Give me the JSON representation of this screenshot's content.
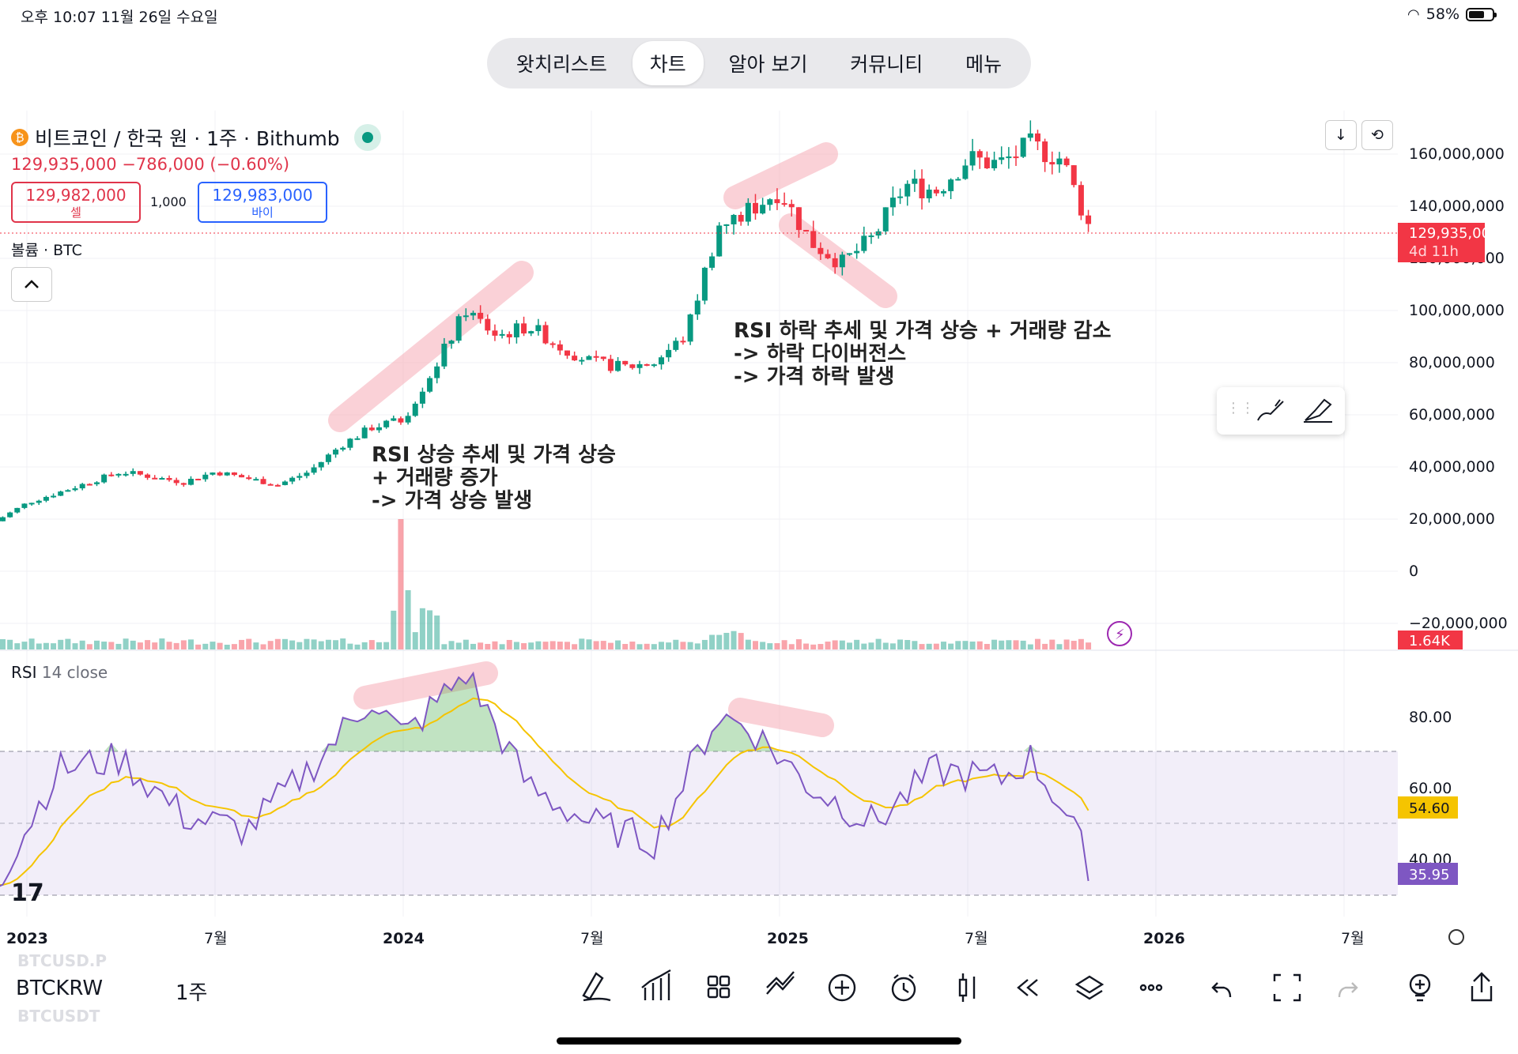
{
  "status_bar": {
    "time": "오후 10:07   11월 26일 수요일",
    "battery": "58%"
  },
  "nav": {
    "tabs": [
      "왓치리스트",
      "차트",
      "알아 보기",
      "커뮤니티",
      "메뉴"
    ],
    "active": "차트"
  },
  "symbol": {
    "title": "비트코인 / 한국 원 · 1주 · Bithumb",
    "price_line": "129,935,000  −786,000 (−0.60%)",
    "sell_price": "129,982,000",
    "sell_label": "셀",
    "spread": "1,000",
    "buy_price": "129,983,000",
    "buy_label": "바이"
  },
  "volume_label": "볼륨 · BTC",
  "price_axis": {
    "ticks": [
      "160,000,000",
      "140,000,000",
      "120,000,000",
      "100,000,000",
      "80,000,000",
      "60,000,000",
      "40,000,000",
      "20,000,000",
      "0",
      "−20,000,000"
    ],
    "current_price": "129,935,000",
    "countdown": "4d 11h",
    "volume_value": "1.64K"
  },
  "rsi": {
    "title": "RSI",
    "params": "14 close",
    "ticks": [
      "80.00",
      "60.00",
      "40.00"
    ],
    "rsi_value": "35.95",
    "ma_value": "54.60"
  },
  "time_axis": [
    "2023",
    "7월",
    "2024",
    "7월",
    "2025",
    "7월",
    "2026",
    "7월"
  ],
  "annotations": {
    "a1": [
      "RSI 상승 추세 및 가격 상승",
      "+ 거래량 증가",
      "-> 가격 상승 발생"
    ],
    "a2": [
      "RSI 하락 추세 및 가격 상승 + 거래량 감소",
      "-> 하락 다이버전스",
      "-> 가격 하락 발생"
    ]
  },
  "bottom": {
    "ticker": "BTCKRW",
    "interval": "1주",
    "ghost_top": "BTCUSD.P",
    "ghost_bottom": "BTCUSDT"
  },
  "colors": {
    "up": "#089981",
    "down": "#f23645",
    "rsi": "#7e57c2",
    "rsi_ma": "#f5c400",
    "highlight": "#f8b4bd"
  },
  "chart_data": {
    "type": "candlestick",
    "interval": "1주",
    "x_range": [
      "2022-12",
      "2026-07"
    ],
    "y_range": [
      -20000000,
      180000000
    ],
    "close_approx": [
      [
        "2022-12",
        21000000
      ],
      [
        "2023-01",
        28000000
      ],
      [
        "2023-03",
        36000000
      ],
      [
        "2023-04",
        40000000
      ],
      [
        "2023-06",
        36000000
      ],
      [
        "2023-07",
        40000000
      ],
      [
        "2023-09",
        35000000
      ],
      [
        "2023-10",
        40000000
      ],
      [
        "2023-11",
        50000000
      ],
      [
        "2023-12",
        57000000
      ],
      [
        "2024-01",
        60000000
      ],
      [
        "2024-02",
        80000000
      ],
      [
        "2024-03",
        102000000
      ],
      [
        "2024-04",
        92000000
      ],
      [
        "2024-05",
        96000000
      ],
      [
        "2024-06",
        88000000
      ],
      [
        "2024-07",
        82000000
      ],
      [
        "2024-08",
        80000000
      ],
      [
        "2024-09",
        82000000
      ],
      [
        "2024-10",
        92000000
      ],
      [
        "2024-11",
        132000000
      ],
      [
        "2024-12",
        140000000
      ],
      [
        "2025-01",
        148000000
      ],
      [
        "2025-02",
        128000000
      ],
      [
        "2025-03",
        120000000
      ],
      [
        "2025-04",
        130000000
      ],
      [
        "2025-05",
        150000000
      ],
      [
        "2025-06",
        148000000
      ],
      [
        "2025-07",
        160000000
      ],
      [
        "2025-08",
        158000000
      ],
      [
        "2025-09",
        165000000
      ],
      [
        "2025-10",
        160000000
      ],
      [
        "2025-11",
        129935000
      ]
    ],
    "rsi_approx": [
      [
        "2022-12",
        33
      ],
      [
        "2023-02",
        65
      ],
      [
        "2023-04",
        68
      ],
      [
        "2023-06",
        52
      ],
      [
        "2023-08",
        48
      ],
      [
        "2023-10",
        65
      ],
      [
        "2023-12",
        85
      ],
      [
        "2024-01",
        74
      ],
      [
        "2024-03",
        92
      ],
      [
        "2024-05",
        60
      ],
      [
        "2024-07",
        50
      ],
      [
        "2024-09",
        45
      ],
      [
        "2024-11",
        80
      ],
      [
        "2024-12",
        77
      ],
      [
        "2025-02",
        60
      ],
      [
        "2025-04",
        50
      ],
      [
        "2025-06",
        65
      ],
      [
        "2025-08",
        62
      ],
      [
        "2025-09",
        68
      ],
      [
        "2025-10",
        55
      ],
      [
        "2025-11",
        35.95
      ]
    ],
    "rsi_overbought": 70,
    "rsi_oversold": 30
  }
}
